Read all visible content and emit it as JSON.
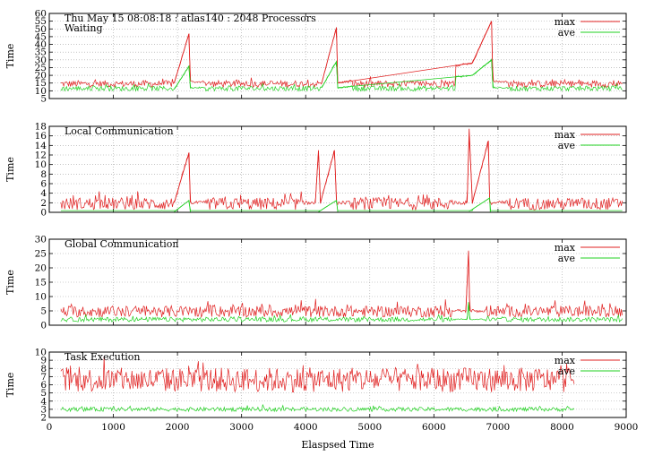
{
  "chart_data": [
    {
      "type": "line",
      "title": "Thu May 15 08:08:18 : atlas140 : 2048 Processors",
      "subtitle": "Waiting",
      "ylabel": "Time",
      "xlim": [
        0,
        9000
      ],
      "ylim": [
        5,
        60
      ],
      "yticks": [
        5,
        10,
        15,
        20,
        25,
        30,
        35,
        40,
        45,
        50,
        55,
        60
      ],
      "grid": true,
      "legend_position": "top-right",
      "series": [
        {
          "name": "max",
          "color": "#e02020",
          "base": 14.5,
          "noise": 2.2,
          "x": [
            180,
            1950,
            2180,
            2200,
            4250,
            4480,
            4500,
            6600,
            6900,
            6920,
            8950
          ],
          "y": [
            17,
            15,
            47,
            16,
            15,
            51,
            15,
            28,
            55,
            16,
            15
          ]
        },
        {
          "name": "ave",
          "color": "#20d020",
          "base": 11.5,
          "noise": 1.6,
          "x": [
            180,
            1950,
            2180,
            2200,
            4250,
            4480,
            4500,
            6600,
            6900,
            6920,
            8950
          ],
          "y": [
            12,
            11,
            26,
            12,
            12,
            29,
            12,
            20,
            30,
            12,
            11
          ]
        }
      ]
    },
    {
      "type": "line",
      "title": "Local Communication",
      "ylabel": "Time",
      "xlim": [
        0,
        9000
      ],
      "ylim": [
        0,
        18
      ],
      "yticks": [
        0,
        2,
        4,
        6,
        8,
        10,
        12,
        14,
        16,
        18
      ],
      "grid": true,
      "legend_position": "top-right",
      "series": [
        {
          "name": "max",
          "color": "#e02020",
          "base": 1.8,
          "noise": 1.3,
          "x": [
            180,
            1950,
            2180,
            2200,
            4150,
            4200,
            4230,
            4450,
            4480,
            6520,
            6550,
            6600,
            6850,
            6870,
            8950
          ],
          "y": [
            3,
            2,
            12.5,
            2,
            2,
            13,
            2,
            13,
            2,
            2,
            17.5,
            2,
            15,
            2,
            2
          ]
        },
        {
          "name": "ave",
          "color": "#20d020",
          "base": 0.15,
          "noise": 0.1,
          "x": [
            180,
            1950,
            2180,
            2200,
            4200,
            4480,
            4500,
            6550,
            6870,
            6880,
            8950
          ],
          "y": [
            0.2,
            0.1,
            2.5,
            0.1,
            0.1,
            2.5,
            0.1,
            0.2,
            3.0,
            0.1,
            0.1
          ]
        }
      ]
    },
    {
      "type": "line",
      "title": "Global Communication",
      "ylabel": "Time",
      "xlim": [
        0,
        9000
      ],
      "ylim": [
        0,
        30
      ],
      "yticks": [
        0,
        5,
        10,
        15,
        20,
        25,
        30
      ],
      "grid": true,
      "legend_position": "top-right",
      "series": [
        {
          "name": "max",
          "color": "#e02020",
          "base": 4.8,
          "noise": 2.0,
          "x": [
            180,
            6500,
            6540,
            6560,
            8950
          ],
          "y": [
            5,
            5,
            26,
            5,
            5
          ]
        },
        {
          "name": "ave",
          "color": "#20d020",
          "base": 2.0,
          "noise": 0.8,
          "x": [
            180,
            6520,
            6540,
            6560,
            8950
          ],
          "y": [
            2,
            2,
            8,
            2,
            2
          ]
        }
      ]
    },
    {
      "type": "line",
      "title": "Task Execution",
      "ylabel": "Time",
      "xlabel": "Elaspsed Time",
      "xlim": [
        0,
        9000
      ],
      "ylim": [
        2,
        10
      ],
      "yticks": [
        2,
        3,
        4,
        5,
        6,
        7,
        8,
        9,
        10
      ],
      "xticks": [
        0,
        1000,
        2000,
        3000,
        4000,
        5000,
        6000,
        7000,
        8000,
        9000
      ],
      "grid": true,
      "legend_position": "top-right",
      "series": [
        {
          "name": "max",
          "color": "#e02020",
          "base": 6.6,
          "noise": 1.5,
          "x": [
            180,
            8200
          ],
          "y": [
            7,
            7
          ]
        },
        {
          "name": "ave",
          "color": "#20d020",
          "base": 3.0,
          "noise": 0.25,
          "x": [
            180,
            8200
          ],
          "y": [
            3,
            3
          ]
        }
      ]
    }
  ]
}
